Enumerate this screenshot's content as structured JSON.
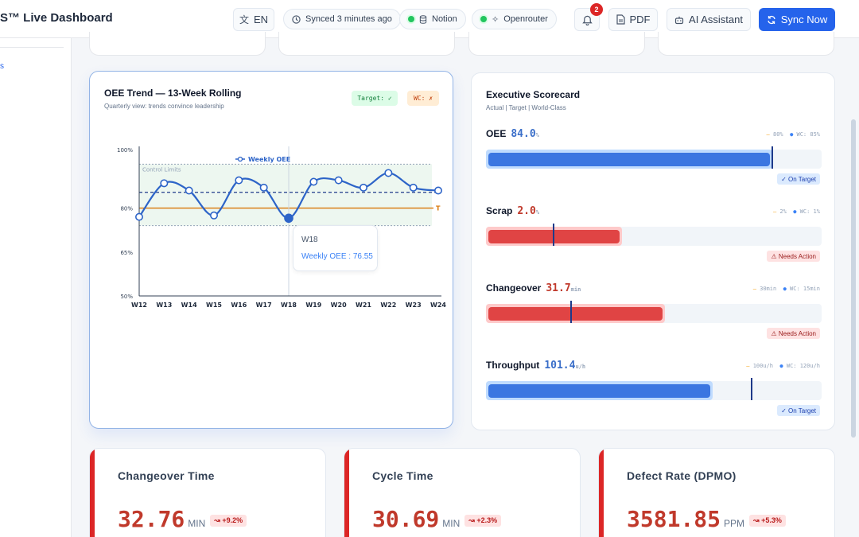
{
  "header": {
    "brand": "S™ Live Dashboard",
    "lang_label": "EN",
    "synced_text": "Synced 3 minutes ago",
    "notion_label": "Notion",
    "openrouter_label": "Openrouter",
    "notifications_count": "2",
    "pdf_label": "PDF",
    "ai_label": "AI Assistant",
    "sync_label": "Sync Now"
  },
  "sidebar": {
    "partial_label": "s"
  },
  "oee_panel": {
    "title": "OEE Trend — 13-Week Rolling",
    "subtitle": "Quarterly view: trends convince leadership",
    "target_chip": "Target: ✓",
    "wc_chip": "WC: ✗"
  },
  "scorecard": {
    "title": "Executive Scorecard",
    "subtitle": "Actual | Target | World-Class",
    "metrics": [
      {
        "name": "OEE",
        "value": "84.0",
        "unit": "%",
        "target_legend": "80%",
        "wc_legend": "WC: 85%",
        "status": "On Target",
        "status_icon": "✓",
        "fill_fraction": 0.84,
        "target_fraction": 0.85,
        "fill_color": "#3b76e1",
        "bg_color": "#bfdbfe"
      },
      {
        "name": "Scrap",
        "value": "2.0",
        "unit": "%",
        "target_legend": "2%",
        "wc_legend": "WC: 1%",
        "status": "Needs Action",
        "status_icon": "⚠",
        "fill_fraction": 0.39,
        "target_fraction": 0.2,
        "fill_color": "#e04444",
        "bg_color": "#fecaca"
      },
      {
        "name": "Changeover",
        "value": "31.7",
        "unit": "min",
        "target_legend": "30min",
        "wc_legend": "WC: 15min",
        "status": "Needs Action",
        "status_icon": "⚠",
        "fill_fraction": 0.52,
        "target_fraction": 0.25,
        "fill_color": "#e04444",
        "bg_color": "#fecaca"
      },
      {
        "name": "Throughput",
        "value": "101.4",
        "unit": "u/h",
        "target_legend": "100u/h",
        "wc_legend": "WC: 120u/h",
        "status": "On Target",
        "status_icon": "✓",
        "fill_fraction": 0.66,
        "target_fraction": 0.79,
        "fill_color": "#3b76e1",
        "bg_color": "#bfdbfe"
      }
    ]
  },
  "kpis": [
    {
      "title": "Changeover Time",
      "value": "32.76",
      "unit": "MIN",
      "delta": "+9.2%"
    },
    {
      "title": "Cycle Time",
      "value": "30.69",
      "unit": "MIN",
      "delta": "+2.3%"
    },
    {
      "title": "Defect Rate (DPMO)",
      "value": "3581.85",
      "unit": "PPM",
      "delta": "+5.3%"
    }
  ],
  "chart_data": {
    "type": "line",
    "legend": "Weekly OEE",
    "categories": [
      "W12",
      "W13",
      "W14",
      "W15",
      "W16",
      "W17",
      "W18",
      "W19",
      "W20",
      "W21",
      "W22",
      "W23",
      "W24"
    ],
    "series": [
      {
        "name": "Weekly OEE",
        "values": [
          77.0,
          88.5,
          86.0,
          77.5,
          89.5,
          87.0,
          76.55,
          89.0,
          89.5,
          87.0,
          92.0,
          87.0,
          86.0
        ]
      }
    ],
    "ylim": [
      50,
      100
    ],
    "yticks": [
      "100%",
      "80%",
      "65%",
      "50%"
    ],
    "target": 80,
    "target_label": "T",
    "mean": 85.4,
    "control_limits": [
      74,
      95
    ],
    "control_label": "Control Limits",
    "tooltip": {
      "title": "W18",
      "text": "Weekly OEE : 76.55"
    }
  }
}
